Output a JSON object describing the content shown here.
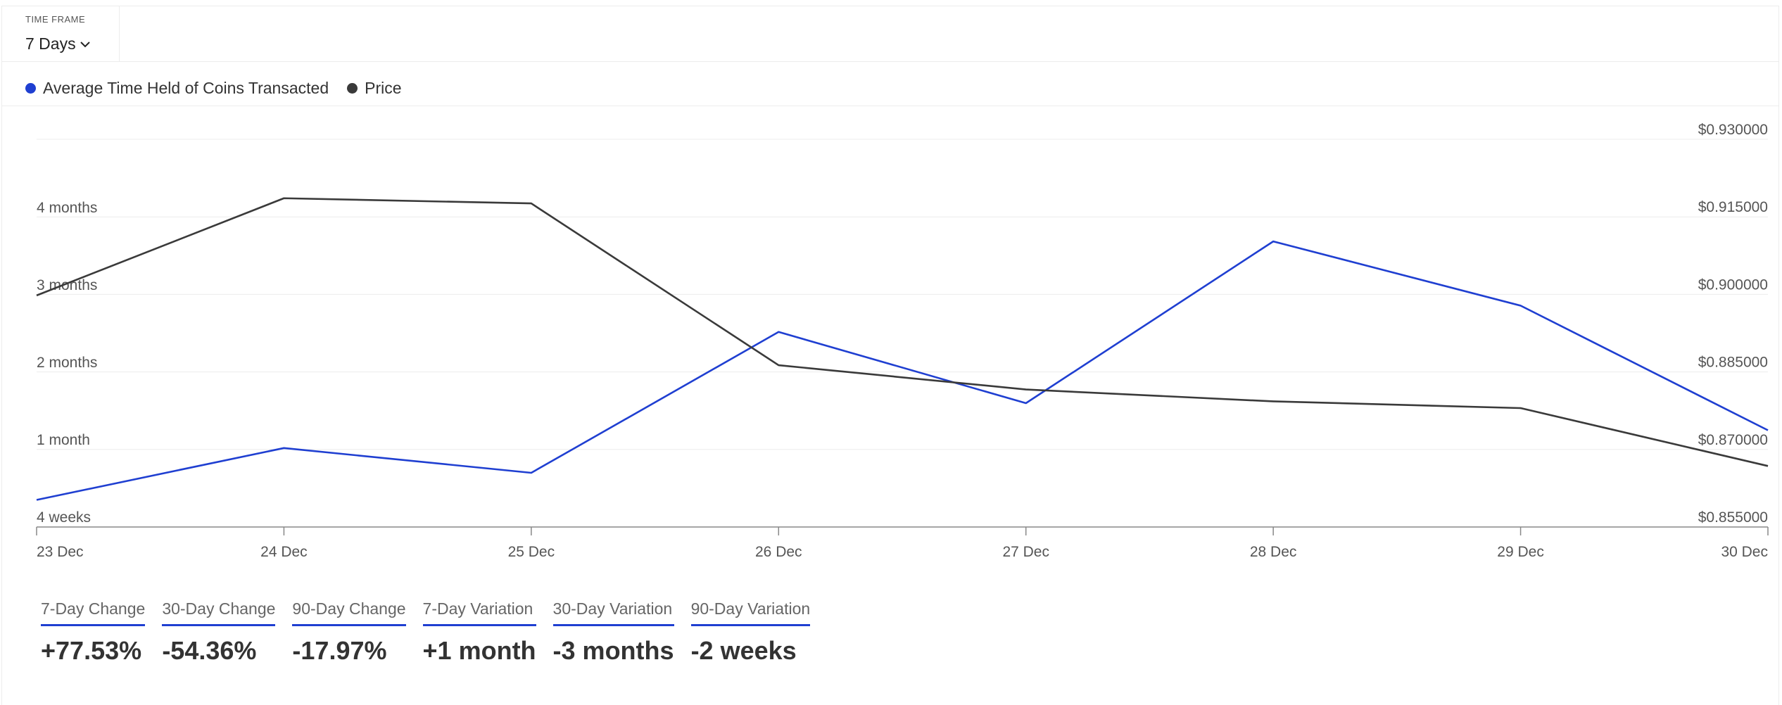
{
  "timeframe": {
    "label": "TIME FRAME",
    "selected": "7 Days"
  },
  "legend": [
    {
      "label": "Average Time Held of Coins Transacted",
      "color": "#1f3fd1"
    },
    {
      "label": "Price",
      "color": "#3a3a3a"
    }
  ],
  "chart_data": {
    "type": "line",
    "x": [
      "23 Dec",
      "24 Dec",
      "25 Dec",
      "26 Dec",
      "27 Dec",
      "28 Dec",
      "29 Dec",
      "30 Dec"
    ],
    "left_axis": {
      "ticks": [
        "4 weeks",
        "1 month",
        "2 months",
        "3 months",
        "4 months"
      ],
      "range_months": [
        0,
        4
      ]
    },
    "right_axis": {
      "ticks": [
        "$0.855000",
        "$0.870000",
        "$0.885000",
        "$0.900000",
        "$0.915000",
        "$0.930000"
      ],
      "range": [
        0.855,
        0.93
      ]
    },
    "series": [
      {
        "name": "Average Time Held of Coins Transacted",
        "axis": "left",
        "color": "#1f3fd1",
        "values_months": [
          0.35,
          1.02,
          0.7,
          2.52,
          1.6,
          3.69,
          2.86,
          1.25
        ]
      },
      {
        "name": "Price",
        "axis": "right",
        "color": "#3a3a3a",
        "values": [
          0.8998,
          0.9186,
          0.9176,
          0.8863,
          0.8816,
          0.8793,
          0.878,
          0.8668
        ]
      }
    ],
    "grid": true,
    "legend_position": "top-left"
  },
  "stats": [
    {
      "label": "7-Day Change",
      "value": "+77.53%"
    },
    {
      "label": "30-Day Change",
      "value": "-54.36%"
    },
    {
      "label": "90-Day Change",
      "value": "-17.97%"
    },
    {
      "label": "7-Day Variation",
      "value": "+1 month"
    },
    {
      "label": "30-Day Variation",
      "value": "-3 months"
    },
    {
      "label": "90-Day Variation",
      "value": "-2 weeks"
    }
  ]
}
